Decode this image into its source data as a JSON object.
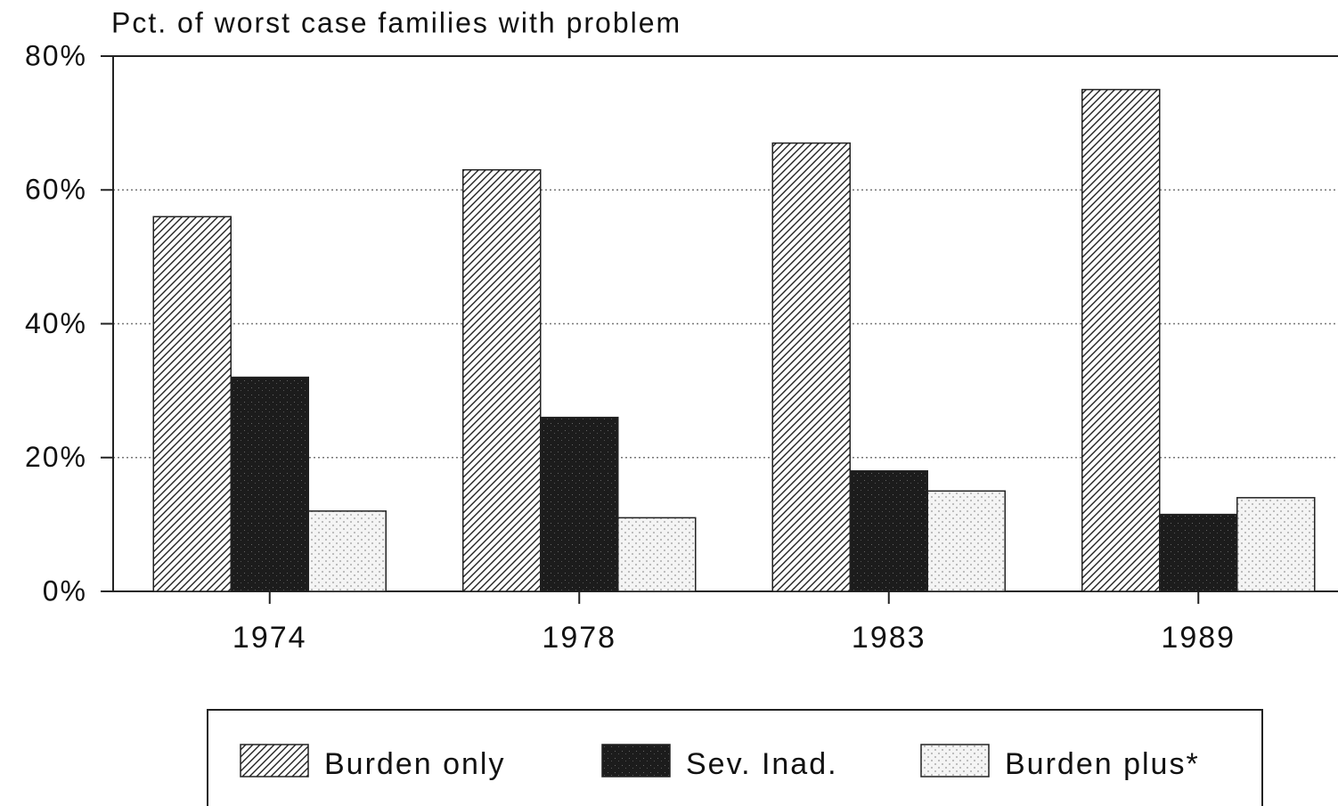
{
  "chart_data": {
    "type": "bar",
    "title": "Pct. of worst case families with problem",
    "categories": [
      "1974",
      "1978",
      "1983",
      "1989"
    ],
    "series": [
      {
        "name": "Burden only",
        "color": "#222222",
        "values": [
          56,
          63,
          67,
          75
        ]
      },
      {
        "name": "Sev. Inad.",
        "color": "#1c1c1c",
        "values": [
          32,
          26,
          18,
          11.5
        ]
      },
      {
        "name": "Burden plus*",
        "color": "#bdbdbd",
        "values": [
          12,
          11,
          15,
          14
        ]
      }
    ],
    "ylim": [
      0,
      80
    ],
    "yticks": [
      {
        "value": 0,
        "label": "0%"
      },
      {
        "value": 20,
        "label": "20%"
      },
      {
        "value": 40,
        "label": "40%"
      },
      {
        "value": 60,
        "label": "60%"
      },
      {
        "value": 80,
        "label": "80%"
      }
    ],
    "grid": true
  }
}
